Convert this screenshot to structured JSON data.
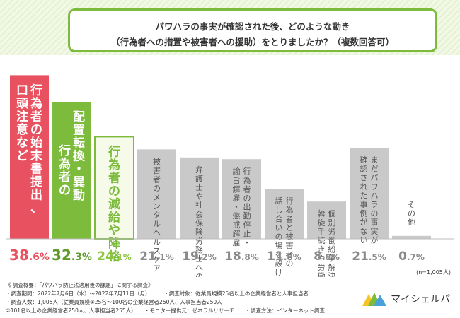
{
  "title": {
    "line1": "パワハラの事実が確認された後、どのような動き",
    "line2": "（行為者への措置や被害者への援助）をとりましたか？（複数回答可）"
  },
  "chart_data": {
    "type": "bar",
    "categories": [
      "行為者の始末書提出、口頭注意など",
      "配置転換・異動、行為者の",
      "行為者の減給や降格",
      "被害者のメンタルヘルスケア",
      "弁護士や社会保険労務士への相談",
      "行為者の出勤停止・諭旨解雇・懲戒解雇",
      "話し合いの場を設ける、行為者と被害者の",
      "個別労働紛争解決制度の斡旋手続きや労働審判の活用",
      "まだパワハラの事実が確認された事例がない",
      "その他"
    ],
    "values": [
      38.6,
      32.3,
      24.1,
      21.1,
      19.2,
      18.8,
      11.8,
      8.8,
      21.5,
      0.7
    ],
    "value_labels": [
      {
        "int": "38",
        "dec": ".6%"
      },
      {
        "int": "32",
        "dec": ".3%"
      },
      {
        "int": "24",
        "dec": ".1%"
      },
      {
        "int": "21",
        "dec": ".1%"
      },
      {
        "int": "19",
        "dec": ".2%"
      },
      {
        "int": "18",
        "dec": ".8%"
      },
      {
        "int": "11",
        "dec": ".8%"
      },
      {
        "int": "8",
        "dec": ".8%"
      },
      {
        "int": "21",
        "dec": ".5%"
      },
      {
        "int": "0",
        "dec": ".7%"
      }
    ],
    "label_columns": [
      [
        "行為者の始末書提出、",
        "口頭注意など"
      ],
      [
        "配置転換・異動",
        "行為者の"
      ],
      [
        "行為者の減給や降格"
      ],
      [
        "被害者のメンタルヘルスケア"
      ],
      [
        "弁護士や社会保険労務士への相談"
      ],
      [
        "行為者の出勤停止・",
        "諭旨解雇・懲戒解雇"
      ],
      [
        "行為者と被害者の",
        "話し合いの場を設ける"
      ],
      [
        "個別労働紛争解決制度の",
        "斡旋手続きや労働審判の活用"
      ],
      [
        "まだパワハラの事実が",
        "確認された事例がない"
      ],
      [
        "その他"
      ]
    ],
    "sample_note": "(n=1,005人)",
    "ylim": [
      0,
      40
    ],
    "colors": {
      "first": "#e8515f",
      "second": "#7cbb3c",
      "third_fill": "#f6fbe9",
      "third_text": "#7cbb3c",
      "rest": "#c9c9c9",
      "rest_text": "#555555",
      "value_first": "#e8515f",
      "value_second": "#5e9a2a",
      "value_third": "#8cc63f",
      "value_rest": "#8a8a8a"
    }
  },
  "footer": {
    "line1": "《 調査概要：「パワハラ防止法適用後の課題」に関する調査》",
    "line2": "・調査期間：2022年7月6日（水）〜2022年7月11日（月）　　　・調査対象：従業員規模25名以上の企業経営者と人事担当者",
    "line3": "・調査人数：1,005人（従業員規模①25名〜100名の企業経営者250人、人事担当者250人",
    "line4": "②101名以上の企業経営者250人、人事担当者255人）　　・モニター提供元：ゼネラルリサーチ　　・調査方法：インターネット調査"
  },
  "brand": {
    "name": "マイシェルパ",
    "colors": [
      "#f7c325",
      "#7cbb3c",
      "#4aa0d8"
    ]
  }
}
